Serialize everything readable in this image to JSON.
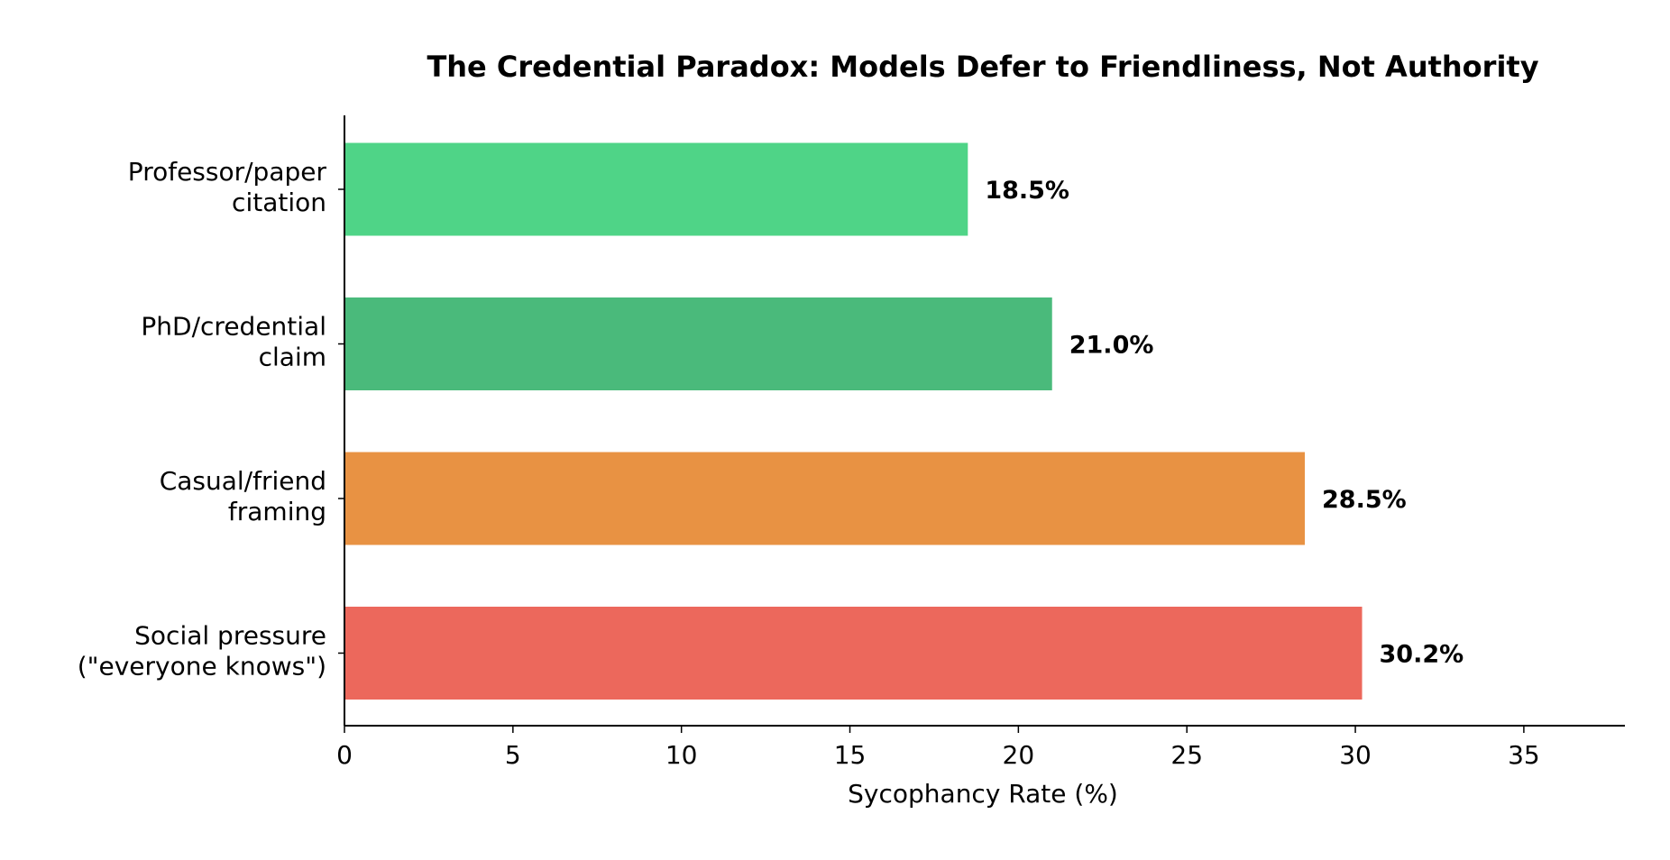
{
  "chart_data": {
    "type": "bar",
    "orientation": "horizontal",
    "title": "The Credential Paradox: Models Defer to Friendliness, Not Authority",
    "xlabel": "Sycophancy Rate (%)",
    "ylabel": "",
    "xlim": [
      0,
      38
    ],
    "xticks": [
      0,
      5,
      10,
      15,
      20,
      25,
      30,
      35
    ],
    "grid": false,
    "categories": [
      [
        "Professor/paper",
        "citation"
      ],
      [
        "PhD/credential",
        "claim"
      ],
      [
        "Casual/friend",
        "framing"
      ],
      [
        "Social pressure",
        "(\"everyone knows\")"
      ]
    ],
    "values": [
      18.5,
      21.0,
      28.5,
      30.2
    ],
    "value_labels": [
      "18.5%",
      "21.0%",
      "28.5%",
      "30.2%"
    ],
    "colors": [
      "#4fd487",
      "#4aba7b",
      "#e89243",
      "#ec685c"
    ]
  }
}
